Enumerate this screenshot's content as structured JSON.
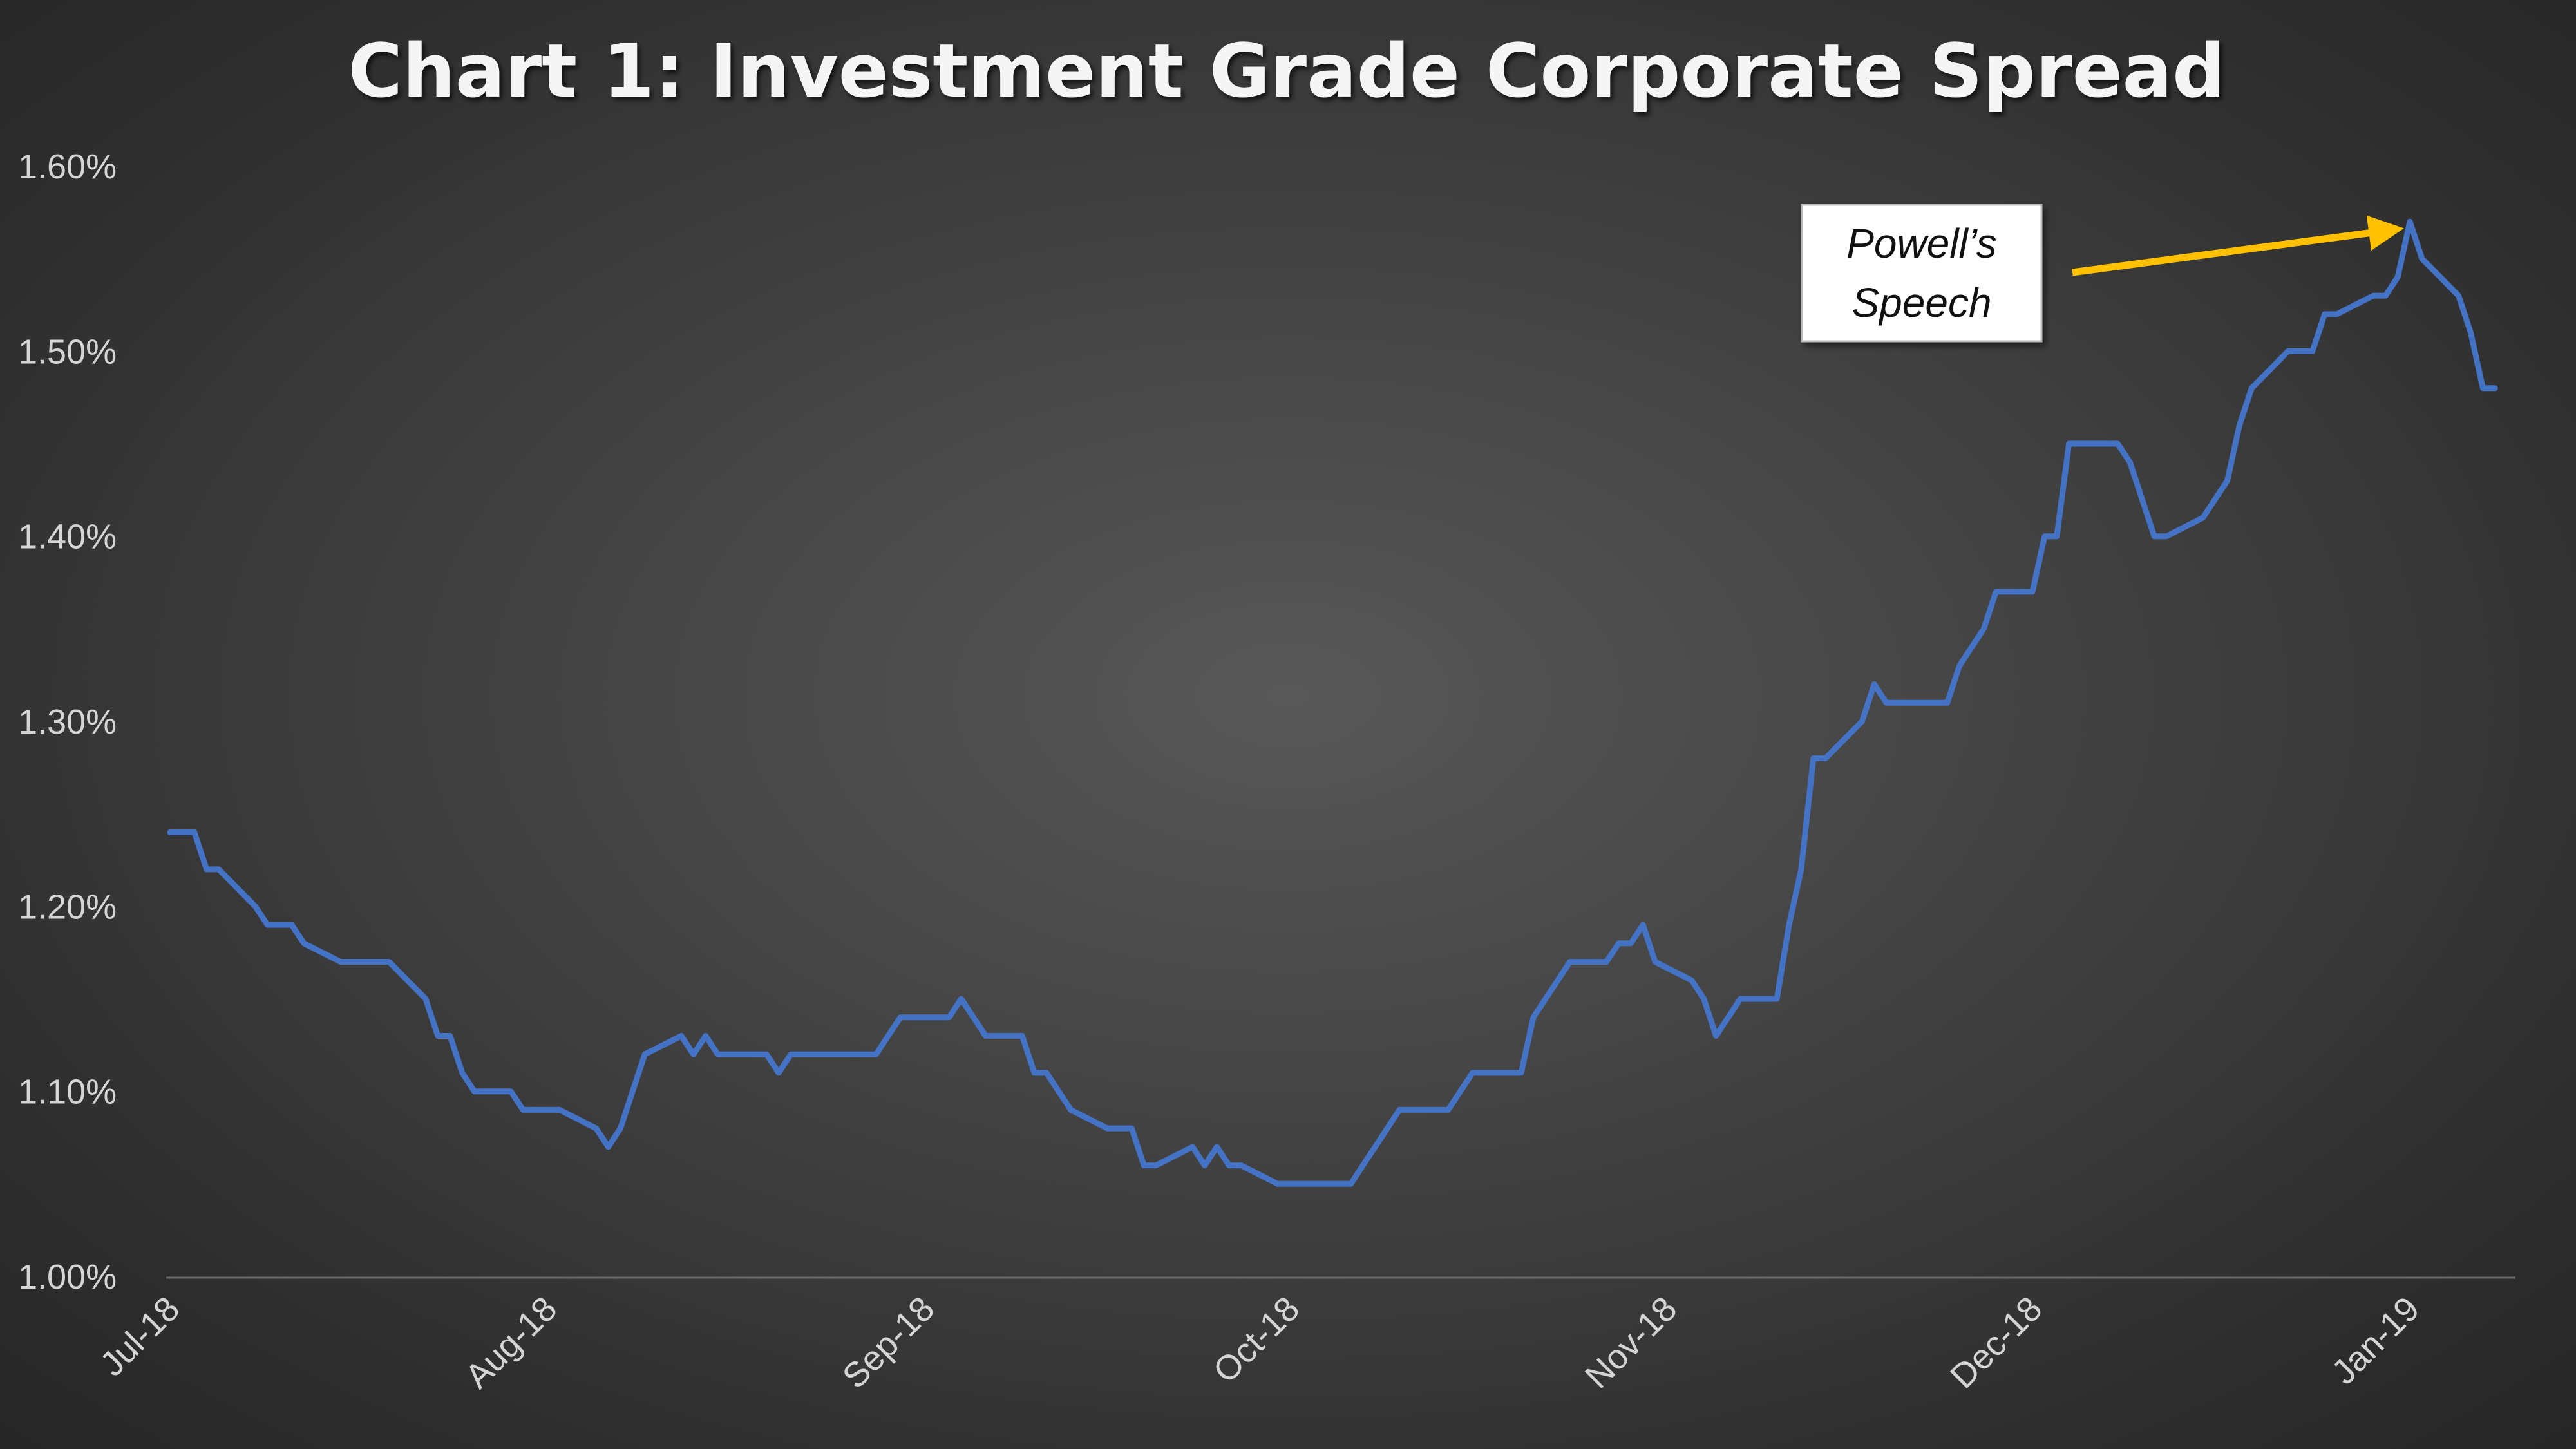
{
  "chart_data": {
    "type": "line",
    "title": "Chart 1: Investment Grade Corporate Spread",
    "xlabel": "",
    "ylabel": "",
    "ylim": [
      1.0,
      1.6
    ],
    "y_ticks": [
      "1.00%",
      "1.10%",
      "1.20%",
      "1.30%",
      "1.40%",
      "1.50%",
      "1.60%"
    ],
    "y_tick_values": [
      1.0,
      1.1,
      1.2,
      1.3,
      1.4,
      1.5,
      1.6
    ],
    "x_ticks": [
      "Jul-18",
      "Aug-18",
      "Sep-18",
      "Oct-18",
      "Nov-18",
      "Dec-18",
      "Jan-19"
    ],
    "x_tick_dates": [
      "2018-07-01",
      "2018-08-01",
      "2018-09-01",
      "2018-10-01",
      "2018-11-01",
      "2018-12-01",
      "2019-01-01"
    ],
    "xlim": [
      "2018-07-01",
      "2019-01-09"
    ],
    "grid": false,
    "legend": "none",
    "line_color": "#4472c4",
    "series": [
      {
        "name": "",
        "points": [
          [
            "2018-07-01",
            1.24
          ],
          [
            "2018-07-03",
            1.24
          ],
          [
            "2018-07-04",
            1.22
          ],
          [
            "2018-07-05",
            1.22
          ],
          [
            "2018-07-08",
            1.2
          ],
          [
            "2018-07-09",
            1.19
          ],
          [
            "2018-07-11",
            1.19
          ],
          [
            "2018-07-12",
            1.18
          ],
          [
            "2018-07-15",
            1.17
          ],
          [
            "2018-07-19",
            1.17
          ],
          [
            "2018-07-22",
            1.15
          ],
          [
            "2018-07-23",
            1.13
          ],
          [
            "2018-07-24",
            1.13
          ],
          [
            "2018-07-25",
            1.11
          ],
          [
            "2018-07-26",
            1.1
          ],
          [
            "2018-07-29",
            1.1
          ],
          [
            "2018-07-30",
            1.09
          ],
          [
            "2018-08-02",
            1.09
          ],
          [
            "2018-08-05",
            1.08
          ],
          [
            "2018-08-06",
            1.07
          ],
          [
            "2018-08-07",
            1.08
          ],
          [
            "2018-08-09",
            1.12
          ],
          [
            "2018-08-12",
            1.13
          ],
          [
            "2018-08-13",
            1.12
          ],
          [
            "2018-08-14",
            1.13
          ],
          [
            "2018-08-15",
            1.12
          ],
          [
            "2018-08-19",
            1.12
          ],
          [
            "2018-08-20",
            1.11
          ],
          [
            "2018-08-21",
            1.12
          ],
          [
            "2018-08-28",
            1.12
          ],
          [
            "2018-08-30",
            1.14
          ],
          [
            "2018-09-03",
            1.14
          ],
          [
            "2018-09-04",
            1.15
          ],
          [
            "2018-09-06",
            1.13
          ],
          [
            "2018-09-09",
            1.13
          ],
          [
            "2018-09-10",
            1.11
          ],
          [
            "2018-09-11",
            1.11
          ],
          [
            "2018-09-13",
            1.09
          ],
          [
            "2018-09-16",
            1.08
          ],
          [
            "2018-09-18",
            1.08
          ],
          [
            "2018-09-19",
            1.06
          ],
          [
            "2018-09-20",
            1.06
          ],
          [
            "2018-09-23",
            1.07
          ],
          [
            "2018-09-24",
            1.06
          ],
          [
            "2018-09-25",
            1.07
          ],
          [
            "2018-09-26",
            1.06
          ],
          [
            "2018-09-27",
            1.06
          ],
          [
            "2018-09-30",
            1.05
          ],
          [
            "2018-10-06",
            1.05
          ],
          [
            "2018-10-10",
            1.09
          ],
          [
            "2018-10-14",
            1.09
          ],
          [
            "2018-10-16",
            1.11
          ],
          [
            "2018-10-20",
            1.11
          ],
          [
            "2018-10-21",
            1.14
          ],
          [
            "2018-10-24",
            1.17
          ],
          [
            "2018-10-27",
            1.17
          ],
          [
            "2018-10-28",
            1.18
          ],
          [
            "2018-10-29",
            1.18
          ],
          [
            "2018-10-30",
            1.19
          ],
          [
            "2018-10-31",
            1.17
          ],
          [
            "2018-11-03",
            1.16
          ],
          [
            "2018-11-04",
            1.15
          ],
          [
            "2018-11-05",
            1.13
          ],
          [
            "2018-11-07",
            1.15
          ],
          [
            "2018-11-10",
            1.15
          ],
          [
            "2018-11-11",
            1.19
          ],
          [
            "2018-11-12",
            1.22
          ],
          [
            "2018-11-13",
            1.28
          ],
          [
            "2018-11-14",
            1.28
          ],
          [
            "2018-11-17",
            1.3
          ],
          [
            "2018-11-18",
            1.32
          ],
          [
            "2018-11-19",
            1.31
          ],
          [
            "2018-11-24",
            1.31
          ],
          [
            "2018-11-25",
            1.33
          ],
          [
            "2018-11-27",
            1.35
          ],
          [
            "2018-11-28",
            1.37
          ],
          [
            "2018-12-01",
            1.37
          ],
          [
            "2018-12-02",
            1.4
          ],
          [
            "2018-12-03",
            1.4
          ],
          [
            "2018-12-04",
            1.45
          ],
          [
            "2018-12-08",
            1.45
          ],
          [
            "2018-12-09",
            1.44
          ],
          [
            "2018-12-11",
            1.4
          ],
          [
            "2018-12-12",
            1.4
          ],
          [
            "2018-12-15",
            1.41
          ],
          [
            "2018-12-17",
            1.43
          ],
          [
            "2018-12-18",
            1.46
          ],
          [
            "2018-12-19",
            1.48
          ],
          [
            "2018-12-22",
            1.5
          ],
          [
            "2018-12-24",
            1.5
          ],
          [
            "2018-12-25",
            1.52
          ],
          [
            "2018-12-26",
            1.52
          ],
          [
            "2018-12-29",
            1.53
          ],
          [
            "2018-12-30",
            1.53
          ],
          [
            "2018-12-31",
            1.54
          ],
          [
            "2019-01-01",
            1.57
          ],
          [
            "2019-01-02",
            1.55
          ],
          [
            "2019-01-05",
            1.53
          ],
          [
            "2019-01-06",
            1.51
          ],
          [
            "2019-01-07",
            1.48
          ],
          [
            "2019-01-08",
            1.48
          ]
        ]
      }
    ],
    "annotations": [
      {
        "line1": "Powell’s",
        "line2": "Speech",
        "points_to": [
          "2019-01-01",
          1.57
        ],
        "arrow_color": "#ffc000",
        "box_color": "#ffffff"
      }
    ]
  }
}
